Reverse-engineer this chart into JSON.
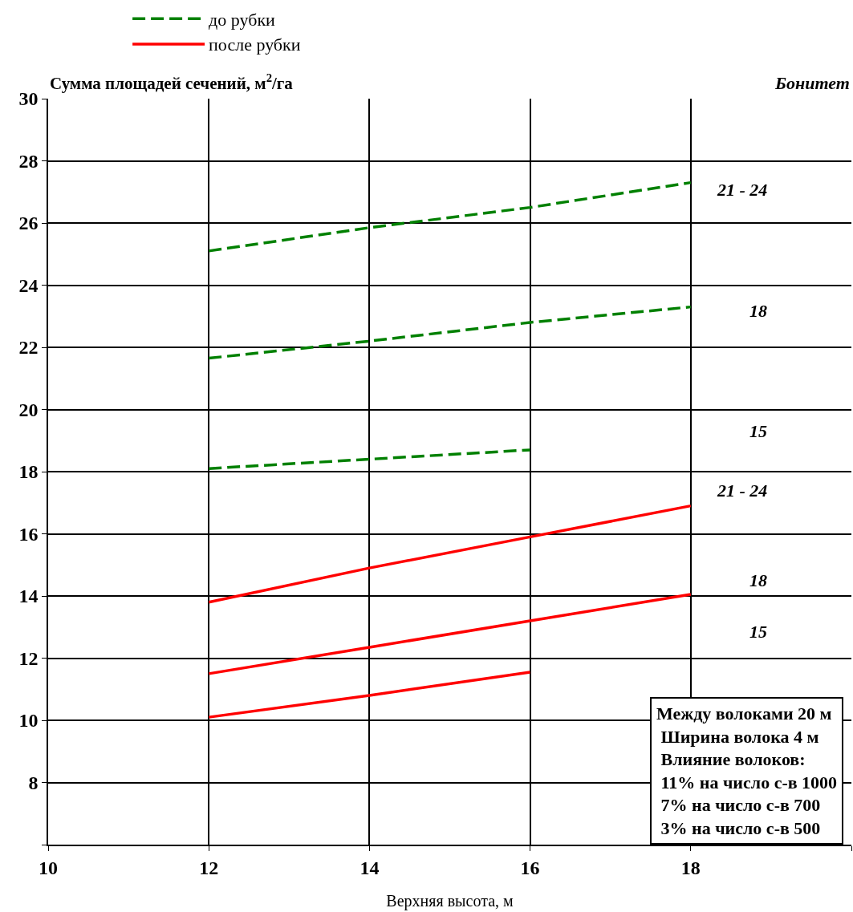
{
  "chart_data": {
    "type": "line",
    "ylabel": "Сумма площадей сечений, м$^{2}$/га",
    "xlabel": "Верхняя высота, м",
    "x": [
      12,
      14,
      16,
      18
    ],
    "series": [
      {
        "name": "до рубки",
        "color": "#008000",
        "line_style": "dashed",
        "values": [
          25.1,
          25.85,
          26.5,
          27.3
        ]
      },
      {
        "color": "#008000",
        "line_style": "dashed",
        "values": [
          21.65,
          22.2,
          22.8,
          23.3
        ]
      },
      {
        "color": "#008000",
        "line_style": "dashed",
        "values": [
          18.1,
          18.4,
          18.7,
          null
        ]
      },
      {
        "name": "после рубки",
        "color": "#ff0000",
        "line_style": "solid",
        "values": [
          13.8,
          14.9,
          15.9,
          16.9
        ]
      },
      {
        "color": "#ff0000",
        "line_style": "solid",
        "values": [
          11.5,
          12.35,
          13.2,
          14.05
        ]
      },
      {
        "color": "#ff0000",
        "line_style": "solid",
        "values": [
          10.1,
          10.8,
          11.55,
          null
        ]
      }
    ],
    "xlim": [
      10,
      20
    ],
    "xticks": [
      10,
      12,
      14,
      16,
      18,
      {
        "value": 20,
        "label": null
      }
    ],
    "ylim": [
      6,
      30
    ],
    "yticks": [
      {
        "value": 6,
        "label": null
      },
      8,
      10,
      12,
      14,
      16,
      18,
      20,
      22,
      24,
      26,
      28,
      30
    ],
    "grid": true,
    "legend": "top",
    "marker": "none",
    "annotations": [
      "Бонитет",
      "21 - 24",
      "18",
      "15",
      "21 - 24",
      "18",
      "15",
      "Между волоками 20 м\n Ширина волока 4 м\n Влияние волоков:\n 11% на число с-в 1000\n 7% на число с-в 700\n 3% на число с-в 500"
    ]
  }
}
